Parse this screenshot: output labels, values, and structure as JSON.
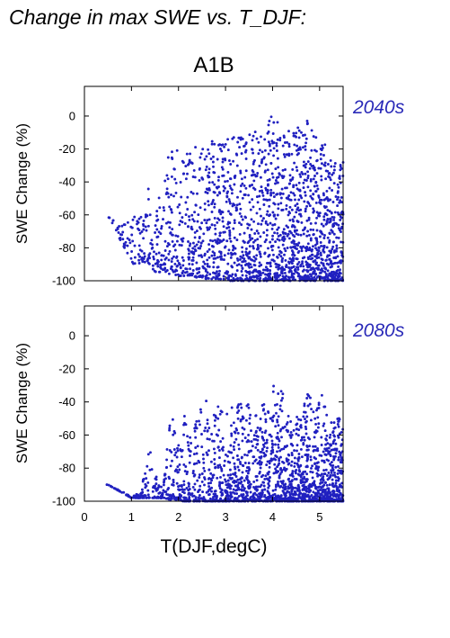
{
  "title": "Change in max SWE vs. T_DJF:",
  "scenario": "A1B",
  "colors": {
    "points": "#2020c0",
    "period_label": "#2a2ab8",
    "axis": "#000000"
  },
  "chart_data": [
    {
      "type": "scatter",
      "period": "2040s",
      "ylabel": "SWE Change (%)",
      "xlabel": "",
      "xlim": [
        0,
        5.5
      ],
      "ylim": [
        -100,
        18
      ],
      "yticks": [
        0,
        -20,
        -40,
        -60,
        -80,
        -100
      ],
      "xticks": [],
      "n_points_approx": 1900,
      "x": [
        0.5,
        1.0,
        1.1,
        1.2,
        1.4,
        1.5,
        1.6,
        1.7,
        1.8,
        1.9,
        2.0,
        2.1,
        2.2,
        2.3,
        2.4,
        2.5,
        2.6,
        2.7,
        2.8,
        2.9,
        3.0,
        3.1,
        3.2,
        3.3,
        3.4,
        3.5,
        3.6,
        3.7,
        3.8,
        3.9,
        4.0,
        4.1,
        4.2,
        4.3,
        4.4,
        4.5,
        4.6,
        4.7,
        4.8,
        4.9,
        5.0,
        5.1,
        5.2,
        5.3,
        5.4,
        5.5
      ],
      "y_min": [
        -61,
        -88,
        -92,
        -88,
        -90,
        -95,
        -95,
        -94,
        -96,
        -96,
        -97,
        -97,
        -97,
        -98,
        -98,
        -99,
        -99,
        -99,
        -99,
        -99,
        -99,
        -100,
        -100,
        -100,
        -100,
        -100,
        -100,
        -100,
        -100,
        -100,
        -100,
        -100,
        -100,
        -100,
        -100,
        -100,
        -100,
        -100,
        -100,
        -100,
        -100,
        -100,
        -100,
        -100,
        -100,
        -100
      ],
      "y_max": [
        -61,
        -65,
        -55,
        -60,
        -33,
        -40,
        -50,
        -38,
        -18,
        -18,
        -18,
        -20,
        -22,
        -17,
        -17,
        -17,
        -20,
        -15,
        -15,
        -14,
        -14,
        -14,
        -12,
        -12,
        -10,
        -10,
        -8,
        -6,
        -5,
        -4,
        1,
        -3,
        -5,
        -8,
        -10,
        -5,
        -2,
        0,
        -8,
        -10,
        -12,
        -15,
        -20,
        -28,
        -30,
        -28
      ]
    },
    {
      "type": "scatter",
      "period": "2080s",
      "ylabel": "SWE Change (%)",
      "xlabel": "T(DJF,degC)",
      "xlim": [
        0,
        5.5
      ],
      "ylim": [
        -100,
        18
      ],
      "yticks": [
        0,
        -20,
        -40,
        -60,
        -80,
        -100
      ],
      "xticks": [
        0,
        1,
        2,
        3,
        4,
        5
      ],
      "n_points_approx": 1900,
      "x": [
        0.5,
        1.0,
        1.1,
        1.2,
        1.4,
        1.5,
        1.6,
        1.7,
        1.8,
        1.9,
        2.0,
        2.1,
        2.2,
        2.3,
        2.4,
        2.5,
        2.6,
        2.7,
        2.8,
        2.9,
        3.0,
        3.1,
        3.2,
        3.3,
        3.4,
        3.5,
        3.6,
        3.7,
        3.8,
        3.9,
        4.0,
        4.1,
        4.2,
        4.3,
        4.4,
        4.5,
        4.6,
        4.7,
        4.8,
        4.9,
        5.0,
        5.1,
        5.2,
        5.3,
        5.4,
        5.5
      ],
      "y_min": [
        -90,
        -98,
        -98,
        -98,
        -98,
        -98,
        -98,
        -98,
        -99,
        -99,
        -99,
        -100,
        -100,
        -100,
        -100,
        -100,
        -100,
        -100,
        -100,
        -100,
        -100,
        -100,
        -100,
        -100,
        -100,
        -100,
        -100,
        -100,
        -100,
        -100,
        -100,
        -100,
        -100,
        -100,
        -100,
        -100,
        -100,
        -100,
        -100,
        -100,
        -100,
        -100,
        -100,
        -100,
        -100,
        -100
      ],
      "y_max": [
        -90,
        -97,
        -96,
        -93,
        -65,
        -80,
        -92,
        -85,
        -55,
        -48,
        -62,
        -40,
        -60,
        -45,
        -42,
        -40,
        -38,
        -42,
        -40,
        -45,
        -42,
        -45,
        -40,
        -38,
        -45,
        -40,
        -45,
        -50,
        -40,
        -45,
        -30,
        -30,
        -32,
        -42,
        -48,
        -48,
        -42,
        -35,
        -32,
        -50,
        -32,
        -40,
        -55,
        -50,
        -45,
        -55
      ]
    }
  ]
}
